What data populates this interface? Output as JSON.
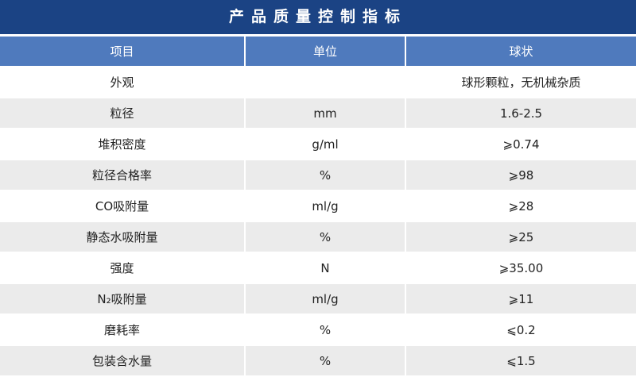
{
  "title": "产品质量控制指标",
  "headers": [
    "项目",
    "单位",
    "球状"
  ],
  "rows": [
    [
      "外观",
      "",
      "球形颗粒，无机械杂质"
    ],
    [
      "粒径",
      "mm",
      "1.6-2.5"
    ],
    [
      "堆积密度",
      "g/ml",
      "⩾0.74"
    ],
    [
      "粒径合格率",
      "%",
      "⩾98"
    ],
    [
      "CO吸附量",
      "ml/g",
      "⩾28"
    ],
    [
      "静态水吸附量",
      "%",
      "⩾25"
    ],
    [
      "强度",
      "N",
      "⩾35.00"
    ],
    [
      "N₂吸附量",
      "ml/g",
      "⩾11"
    ],
    [
      "磨耗率",
      "%",
      "⩽0.2"
    ],
    [
      "包装含水量",
      "%",
      "⩽1.5"
    ]
  ]
}
